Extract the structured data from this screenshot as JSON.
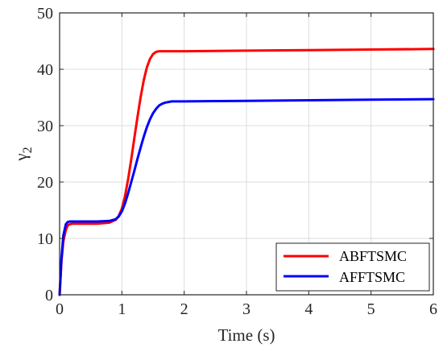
{
  "chart_data": {
    "type": "line",
    "xlabel": "Time (s)",
    "ylabel_symbol": "γ",
    "ylabel_subscript": "2",
    "xlim": [
      0,
      6
    ],
    "ylim": [
      0,
      50
    ],
    "xticks": [
      0,
      1,
      2,
      3,
      4,
      5,
      6
    ],
    "yticks": [
      0,
      10,
      20,
      30,
      40,
      50
    ],
    "xtick_labels": [
      "0",
      "1",
      "2",
      "3",
      "4",
      "5",
      "6"
    ],
    "ytick_labels": [
      "0",
      "10",
      "20",
      "30",
      "40",
      "50"
    ],
    "grid": true,
    "legend_position": "bottom-right",
    "series": [
      {
        "name": "ABFTSMC",
        "color": "#ff0000",
        "x": [
          0,
          0.03,
          0.06,
          0.1,
          0.13,
          0.16,
          0.2,
          0.4,
          0.6,
          0.8,
          0.9,
          0.95,
          1.0,
          1.05,
          1.1,
          1.15,
          1.2,
          1.25,
          1.3,
          1.35,
          1.4,
          1.45,
          1.5,
          1.55,
          1.6,
          1.65,
          1.7,
          2.0,
          3.0,
          4.0,
          5.0,
          6.0
        ],
        "y": [
          0,
          6,
          9.5,
          11.5,
          12.3,
          12.5,
          12.6,
          12.6,
          12.6,
          12.8,
          13.3,
          14.0,
          15.3,
          17.5,
          20.5,
          24.0,
          27.8,
          31.5,
          35.0,
          38.0,
          40.3,
          41.8,
          42.7,
          43.1,
          43.2,
          43.2,
          43.2,
          43.2,
          43.3,
          43.4,
          43.5,
          43.6
        ]
      },
      {
        "name": "AFFTSMC",
        "color": "#0000ff",
        "x": [
          0,
          0.03,
          0.06,
          0.1,
          0.13,
          0.16,
          0.2,
          0.4,
          0.6,
          0.8,
          0.9,
          0.95,
          1.0,
          1.05,
          1.1,
          1.15,
          1.2,
          1.25,
          1.3,
          1.35,
          1.4,
          1.45,
          1.5,
          1.55,
          1.6,
          1.65,
          1.7,
          1.75,
          1.8,
          2.0,
          3.0,
          4.0,
          5.0,
          6.0
        ],
        "y": [
          0,
          6.5,
          10.5,
          12.5,
          12.9,
          13.0,
          13.0,
          13.0,
          13.0,
          13.1,
          13.4,
          13.9,
          14.8,
          16.2,
          18.0,
          20.0,
          22.0,
          24.1,
          26.1,
          28.0,
          29.7,
          31.1,
          32.2,
          33.0,
          33.6,
          33.9,
          34.1,
          34.2,
          34.3,
          34.3,
          34.4,
          34.5,
          34.6,
          34.7
        ]
      }
    ]
  }
}
